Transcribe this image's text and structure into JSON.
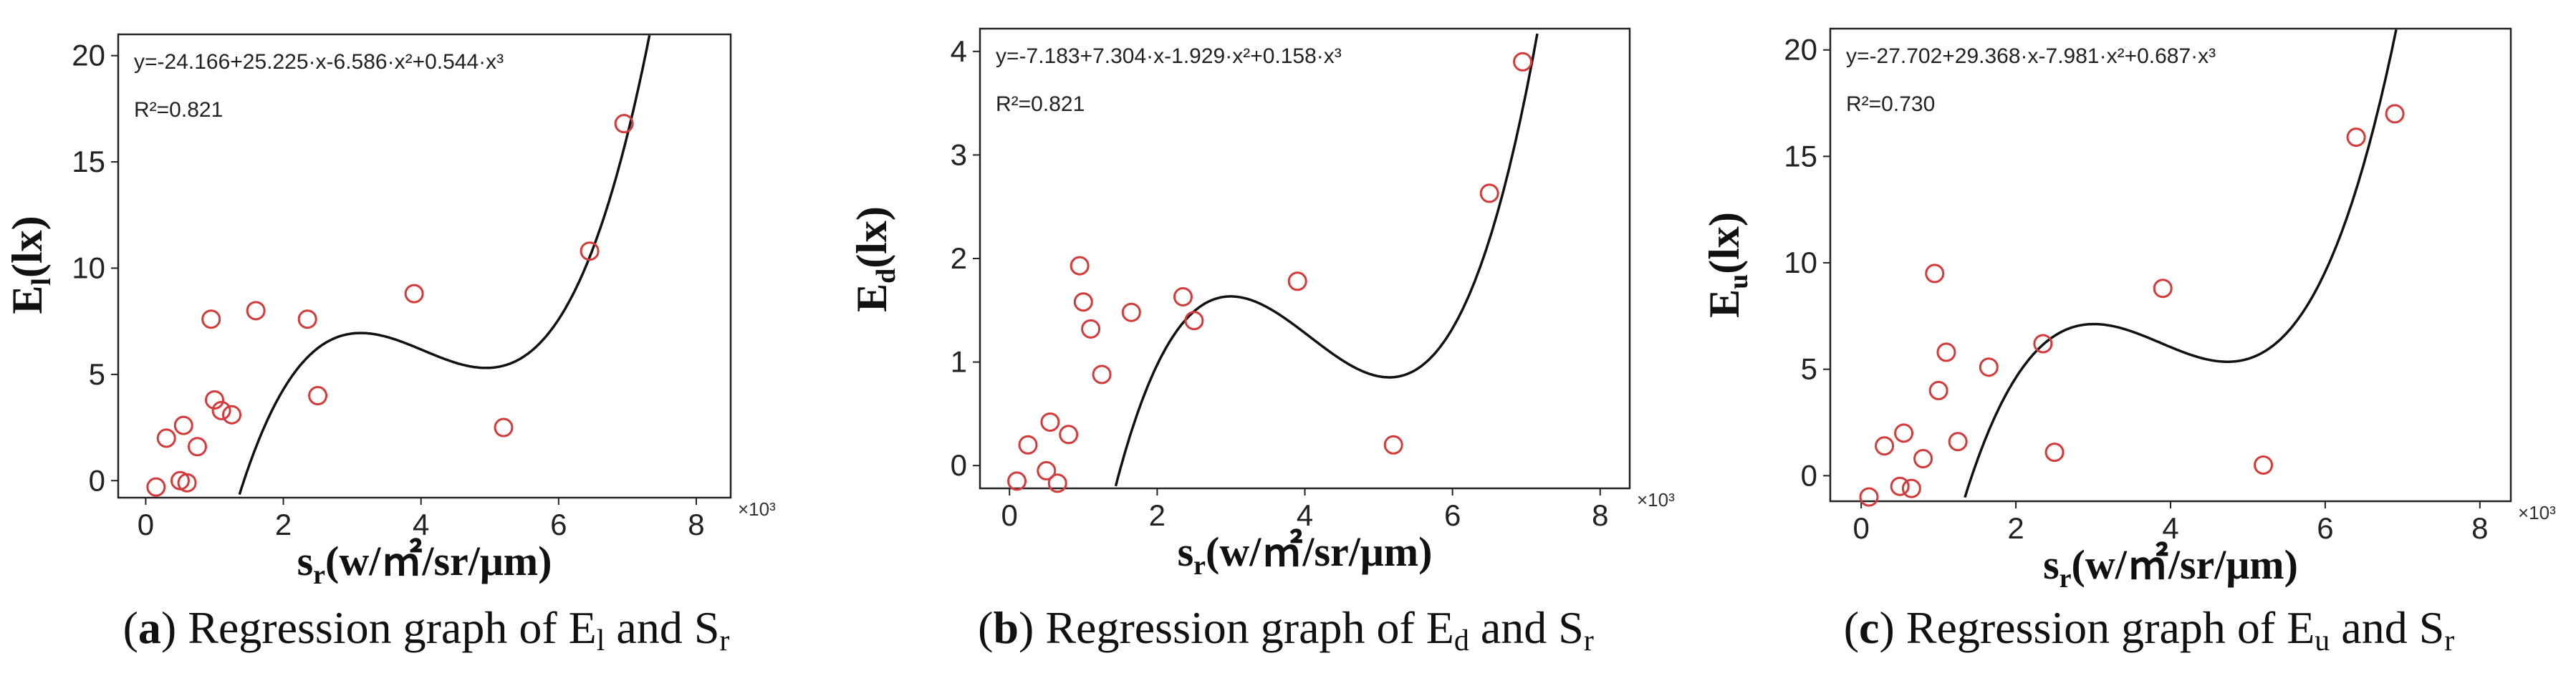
{
  "chart_data": [
    {
      "type": "scatter",
      "panel_label": "a",
      "caption": "Regression graph of El and Sr",
      "equation": "y=-24.166+25.225·x-6.586·x²+0.544·x³",
      "r_squared": "R²=0.821",
      "xlabel": "sr(w/㎡/sr/μm)",
      "ylabel": "El(lx)",
      "x_scale_label": "×10³",
      "xlim": [
        -0.4,
        8.5
      ],
      "ylim": [
        -0.8,
        21
      ],
      "xticks": [
        0,
        2,
        4,
        6,
        8
      ],
      "yticks": [
        0,
        5,
        10,
        15,
        20
      ],
      "fit_coeffs": [
        -24.166,
        25.225,
        -6.586,
        0.544
      ],
      "fit_range": [
        0.3,
        7.5
      ],
      "x": [
        0.15,
        0.3,
        0.5,
        0.55,
        0.6,
        0.75,
        0.95,
        1.0,
        1.1,
        1.25,
        1.6,
        2.35,
        2.5,
        3.9,
        5.2,
        6.45,
        6.95
      ],
      "y": [
        -0.3,
        2.0,
        0.0,
        2.6,
        -0.1,
        1.6,
        7.6,
        3.8,
        3.3,
        3.1,
        8.0,
        7.6,
        4.0,
        8.8,
        2.5,
        10.8,
        16.8
      ]
    },
    {
      "type": "scatter",
      "panel_label": "b",
      "caption": "Regression graph of Ed and Sr",
      "equation": "y=-7.183+7.304·x-1.929·x²+0.158·x³",
      "r_squared": "R²=0.821",
      "xlabel": "sr(w/㎡/sr/μm)",
      "ylabel": "Ed(lx)",
      "x_scale_label": "×10³",
      "xlim": [
        -0.4,
        8.4
      ],
      "ylim": [
        -0.22,
        4.22
      ],
      "xticks": [
        0,
        2,
        4,
        6,
        8
      ],
      "yticks": [
        0,
        1,
        2,
        3,
        4
      ],
      "fit_coeffs": [
        -7.183,
        7.304,
        -1.929,
        0.158
      ],
      "fit_range": [
        0.3,
        7.2
      ],
      "x": [
        0.1,
        0.25,
        0.5,
        0.55,
        0.65,
        0.8,
        0.95,
        1.0,
        1.1,
        1.25,
        1.65,
        2.35,
        2.5,
        3.9,
        5.2,
        6.5,
        6.95
      ],
      "y": [
        -0.15,
        0.2,
        -0.05,
        0.42,
        -0.17,
        0.3,
        1.93,
        1.58,
        1.32,
        0.88,
        1.48,
        1.63,
        1.4,
        1.78,
        0.2,
        2.63,
        3.9
      ]
    },
    {
      "type": "scatter",
      "panel_label": "c",
      "caption": "Regression graph of Eu and Sr",
      "equation": "y=-27.702+29.368·x-7.981·x²+0.687·x³",
      "r_squared": "R²=0.730",
      "xlabel": "sr(w/㎡/sr/μm)",
      "ylabel": "Eu(lx)",
      "x_scale_label": "×10³",
      "xlim": [
        -0.4,
        8.4
      ],
      "ylim": [
        -1.2,
        21
      ],
      "xticks": [
        0,
        2,
        4,
        6,
        8
      ],
      "yticks": [
        0,
        5,
        10,
        15,
        20
      ],
      "fit_coeffs": [
        -27.702,
        29.368,
        -7.981,
        0.687
      ],
      "fit_range": [
        0.35,
        7.3
      ],
      "x": [
        0.1,
        0.3,
        0.5,
        0.55,
        0.65,
        0.8,
        0.95,
        1.0,
        1.1,
        1.25,
        1.65,
        2.35,
        2.5,
        3.9,
        5.2,
        6.4,
        6.9
      ],
      "y": [
        -1.0,
        1.4,
        -0.5,
        2.0,
        -0.6,
        0.8,
        9.5,
        4.0,
        5.8,
        1.6,
        5.1,
        6.2,
        1.1,
        8.8,
        0.5,
        15.9,
        17.0
      ]
    }
  ],
  "colors": {
    "point": "#d43a3a",
    "curve": "#111111",
    "axis": "#222222"
  }
}
